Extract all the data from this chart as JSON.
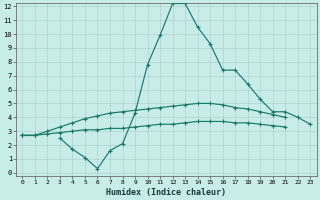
{
  "xlabel": "Humidex (Indice chaleur)",
  "x_values": [
    0,
    1,
    2,
    3,
    4,
    5,
    6,
    7,
    8,
    9,
    10,
    11,
    12,
    13,
    14,
    15,
    16,
    17,
    18,
    19,
    20,
    21,
    22,
    23
  ],
  "line_main_y": [
    2.7,
    2.7,
    null,
    2.5,
    1.7,
    1.1,
    0.3,
    1.6,
    2.1,
    4.3,
    7.8,
    9.9,
    12.2,
    12.2,
    10.5,
    9.3,
    7.4,
    7.4,
    6.4,
    5.3,
    4.4,
    4.4,
    4.0,
    3.5
  ],
  "line_upper_y": [
    2.7,
    2.7,
    3.0,
    3.3,
    3.6,
    3.9,
    4.1,
    4.3,
    4.4,
    4.5,
    4.6,
    4.7,
    4.8,
    4.9,
    5.0,
    5.0,
    4.9,
    4.7,
    4.6,
    4.4,
    4.2,
    4.0,
    null,
    null
  ],
  "line_lower_y": [
    2.7,
    2.7,
    2.8,
    2.9,
    3.0,
    3.1,
    3.1,
    3.2,
    3.2,
    3.3,
    3.4,
    3.5,
    3.5,
    3.6,
    3.7,
    3.7,
    3.7,
    3.6,
    3.6,
    3.5,
    3.4,
    3.3,
    null,
    null
  ],
  "ylim": [
    0,
    12
  ],
  "xlim": [
    -0.5,
    23.5
  ],
  "yticks": [
    0,
    1,
    2,
    3,
    4,
    5,
    6,
    7,
    8,
    9,
    10,
    11,
    12
  ],
  "xticks": [
    0,
    1,
    2,
    3,
    4,
    5,
    6,
    7,
    8,
    9,
    10,
    11,
    12,
    13,
    14,
    15,
    16,
    17,
    18,
    19,
    20,
    21,
    22,
    23
  ],
  "line_color": "#1a7a6a",
  "bg_color": "#c8ece8",
  "grid_color": "#9bbfbb"
}
